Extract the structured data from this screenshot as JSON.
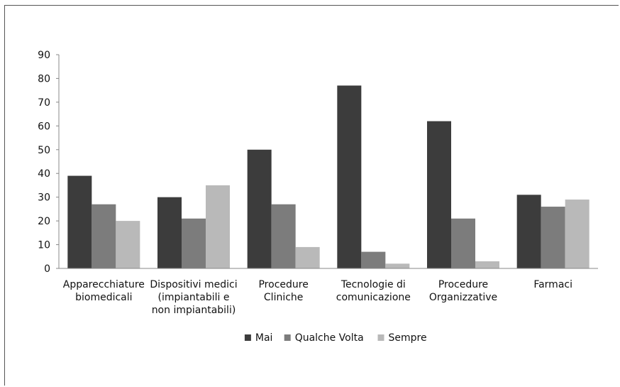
{
  "chart_data": {
    "type": "bar",
    "title": "",
    "xlabel": "",
    "ylabel": "",
    "ylim": [
      0,
      90
    ],
    "yticks": [
      0,
      10,
      20,
      30,
      40,
      50,
      60,
      70,
      80,
      90
    ],
    "grid": false,
    "legend_position": "bottom",
    "categories": [
      [
        "Apparecchiature",
        "biomedicali"
      ],
      [
        "Dispositivi medici",
        "(impiantabili e",
        "non impiantabili)"
      ],
      [
        "Procedure",
        "Cliniche"
      ],
      [
        "Tecnologie di",
        "comunicazione"
      ],
      [
        "Procedure",
        "Organizzative"
      ],
      [
        "Farmaci"
      ]
    ],
    "series": [
      {
        "name": "Mai",
        "color": "#3c3c3c",
        "values": [
          39,
          30,
          50,
          77,
          62,
          31
        ]
      },
      {
        "name": "Qualche Volta",
        "color": "#7c7c7c",
        "values": [
          27,
          21,
          27,
          7,
          21,
          26
        ]
      },
      {
        "name": "Sempre",
        "color": "#b9b9b9",
        "values": [
          20,
          35,
          9,
          2,
          3,
          29
        ]
      }
    ]
  }
}
